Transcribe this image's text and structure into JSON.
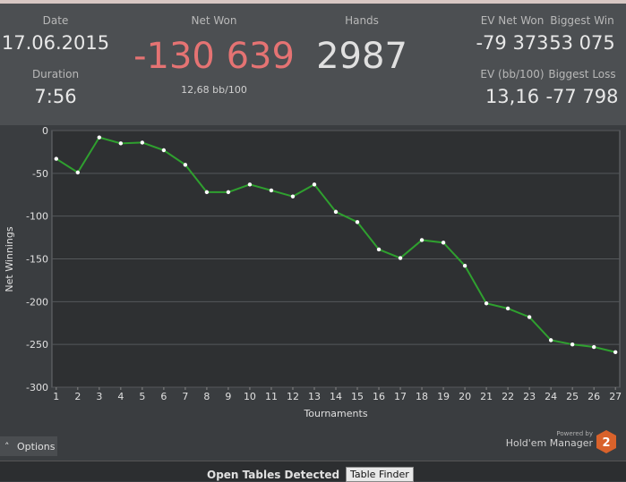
{
  "header": {
    "date_label": "Date",
    "date": "17.06.2015",
    "duration_label": "Duration",
    "duration": "7:56",
    "net_won_label": "Net Won",
    "net_won": "-130 639",
    "bb100": "12,68 bb/100",
    "hands_label": "Hands",
    "hands": "2987",
    "ev_net_won_label": "EV Net Won",
    "ev_net_won": "-79 373",
    "ev_bb100_label": "EV (bb/100)",
    "ev_bb100": "13,16",
    "biggest_win_label": "Biggest Win",
    "biggest_win": "53 075",
    "biggest_loss_label": "Biggest Loss",
    "biggest_loss": "-77 798"
  },
  "chart_data": {
    "type": "line",
    "ylabel": "Net Winnings",
    "xlabel": "Tournaments",
    "x": [
      1,
      2,
      3,
      4,
      5,
      6,
      7,
      8,
      9,
      10,
      11,
      12,
      13,
      14,
      15,
      16,
      17,
      18,
      19,
      20,
      21,
      22,
      23,
      24,
      25,
      26,
      27
    ],
    "series": [
      {
        "name": "Net Winnings",
        "color": "#2fa02f",
        "values": [
          -33,
          -49,
          -8,
          -15,
          -14,
          -23,
          -40,
          -72,
          -72,
          -63,
          -70,
          -77,
          -63,
          -95,
          -107,
          -139,
          -149,
          -128,
          -131,
          -158,
          -202,
          -208,
          -218,
          -245,
          -250,
          -253,
          -259
        ]
      }
    ],
    "xlim": [
      0.8,
      27.2
    ],
    "xticks": [
      1,
      2,
      3,
      4,
      5,
      6,
      7,
      8,
      9,
      10,
      11,
      12,
      13,
      14,
      15,
      16,
      17,
      18,
      19,
      20,
      21,
      22,
      23,
      24,
      25,
      26,
      27
    ],
    "ylim": [
      -300,
      0
    ],
    "yticks": [
      -300,
      -250,
      -200,
      -150,
      -100,
      -50,
      0
    ],
    "grid": true
  },
  "footer": {
    "options": "Options",
    "powered_by": "Powered by",
    "brand": "Hold'em Manager",
    "brand_num": "2",
    "open_tables": "Open Tables Detected",
    "table_finder": "Table Finder"
  }
}
